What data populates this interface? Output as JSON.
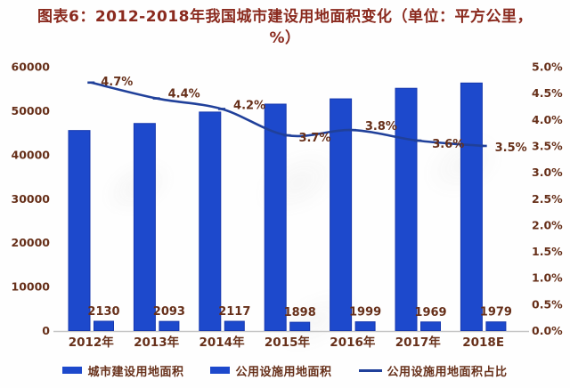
{
  "title": "图表6：2012-2018年我国城市建设用地面积变化（单位：平方公里，%）",
  "colors": {
    "bar_fill": "#1d49cc",
    "bar_edge": "#1638ae",
    "line": "#20409a",
    "title_text": "#8a2a1e",
    "label_text": "#67301a",
    "axis_line": "#c6c6c6"
  },
  "chart_data": {
    "type": "bar",
    "subtype": "bar+line combo",
    "categories": [
      "2012年",
      "2013年",
      "2014年",
      "2015年",
      "2016年",
      "2017年",
      "2018E"
    ],
    "series": [
      {
        "name": "城市建设用地面积",
        "kind": "bar",
        "axis": "left",
        "values": [
          45500,
          47100,
          49700,
          51500,
          52700,
          55100,
          56300
        ],
        "labels": []
      },
      {
        "name": "公用设施用地面积",
        "kind": "bar",
        "axis": "left",
        "values": [
          2130,
          2093,
          2117,
          1898,
          1999,
          1969,
          1979
        ],
        "labels": [
          "2130",
          "2093",
          "2117",
          "1898",
          "1999",
          "1969",
          "1979"
        ]
      },
      {
        "name": "公用设施用地面积占比",
        "kind": "line",
        "axis": "right",
        "values": [
          4.7,
          4.4,
          4.2,
          3.7,
          3.8,
          3.6,
          3.5
        ],
        "labels": [
          "4.7%",
          "4.4%",
          "4.2%",
          "3.7%",
          "3.8%",
          "3.6%",
          "3.5%"
        ]
      }
    ],
    "left_axis": {
      "min": 0,
      "max": 60000,
      "step": 10000,
      "ticks": [
        "0",
        "10000",
        "20000",
        "30000",
        "40000",
        "50000",
        "60000"
      ]
    },
    "right_axis": {
      "min": 0,
      "max": 5,
      "step": 0.5,
      "ticks": [
        "0.0%",
        "0.5%",
        "1.0%",
        "1.5%",
        "2.0%",
        "2.5%",
        "3.0%",
        "3.5%",
        "4.0%",
        "4.5%",
        "5.0%"
      ]
    },
    "grid": false,
    "legend_position": "bottom",
    "legend": [
      {
        "label": "城市建设用地面积",
        "swatch": "bar"
      },
      {
        "label": "公用设施用地面积",
        "swatch": "bar"
      },
      {
        "label": "公用设施用地面积占比",
        "swatch": "line"
      }
    ]
  }
}
